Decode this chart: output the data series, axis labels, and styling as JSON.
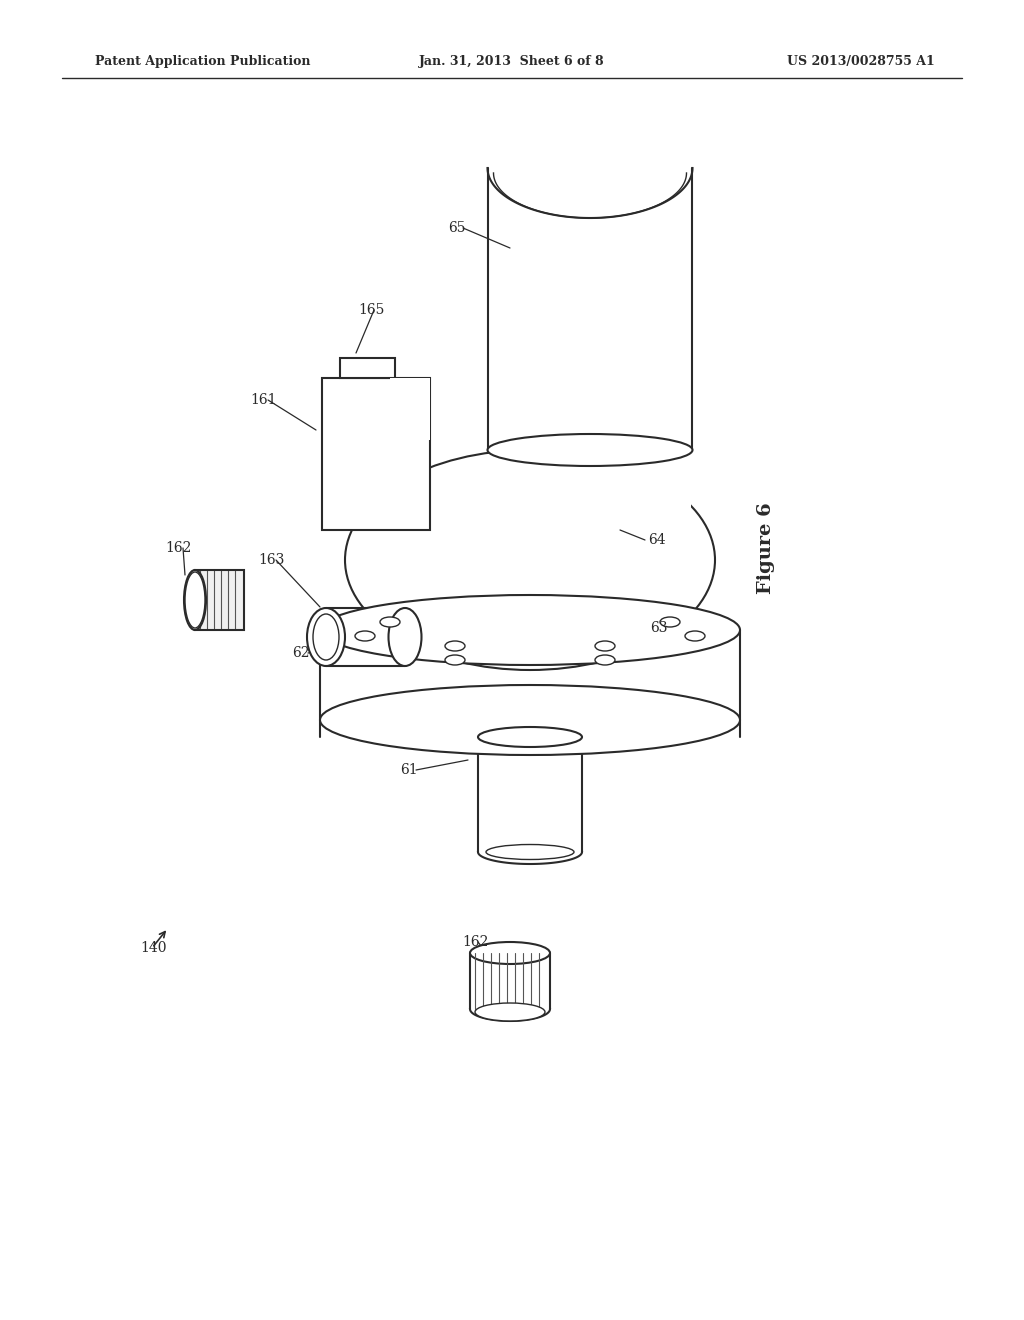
{
  "header_left": "Patent Application Publication",
  "header_center": "Jan. 31, 2013  Sheet 6 of 8",
  "header_right": "US 2013/0028755 A1",
  "figure_label": "Figure 6",
  "background_color": "#ffffff",
  "line_color": "#2a2a2a",
  "lw_main": 1.4,
  "lw_thin": 0.9
}
